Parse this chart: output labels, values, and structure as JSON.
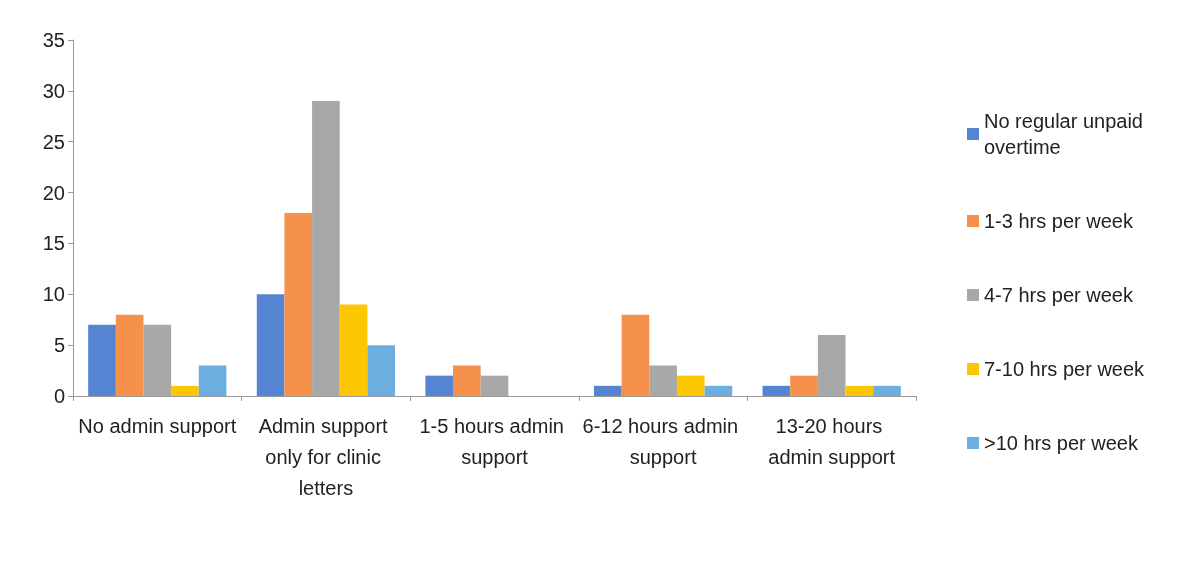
{
  "chart_data": {
    "type": "bar",
    "categories": [
      "No admin support",
      "Admin support only for clinic letters",
      "1-5 hours admin support",
      "6-12 hours admin support",
      "13-20 hours admin support"
    ],
    "series": [
      {
        "name": "No regular unpaid overtime",
        "color": "#5584d2",
        "values": [
          7,
          10,
          2,
          1,
          1
        ]
      },
      {
        "name": "1-3 hrs per week",
        "color": "#f5914a",
        "values": [
          8,
          18,
          3,
          8,
          2
        ]
      },
      {
        "name": "4-7 hrs per week",
        "color": "#a8a8a8",
        "values": [
          7,
          29,
          2,
          3,
          6
        ]
      },
      {
        "name": "7-10 hrs per week",
        "color": "#fcc600",
        "values": [
          1,
          9,
          0,
          2,
          1
        ]
      },
      {
        "name": ">10 hrs per week",
        "color": "#6caee0",
        "values": [
          3,
          5,
          0,
          1,
          1
        ]
      }
    ],
    "ylim": [
      0,
      35
    ],
    "yticks": [
      0,
      5,
      10,
      15,
      20,
      25,
      30,
      35
    ],
    "grid": false,
    "legend": "right"
  }
}
